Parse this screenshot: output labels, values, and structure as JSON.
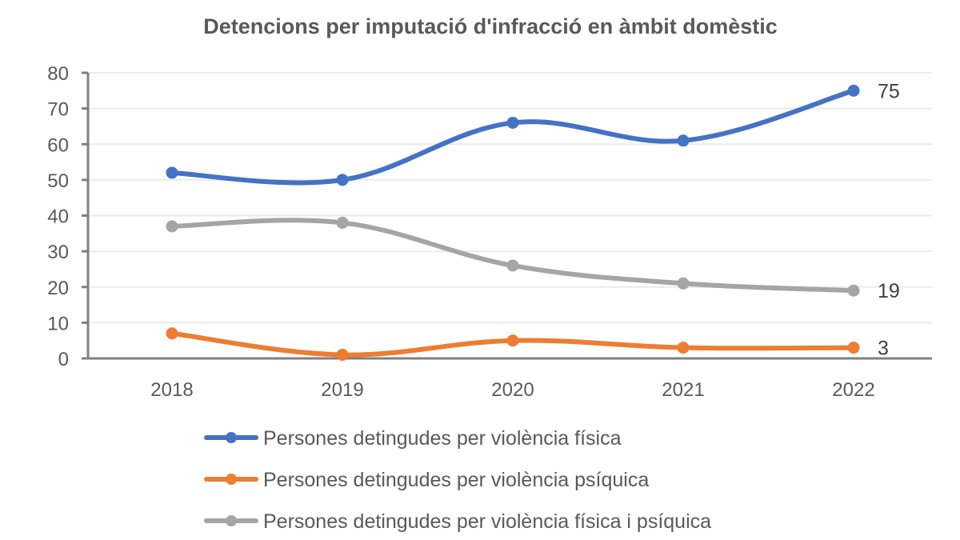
{
  "chart_data": {
    "type": "line",
    "title": "Detencions per imputació d'infracció en àmbit domèstic",
    "xlabel": "",
    "ylabel": "",
    "categories": [
      "2018",
      "2019",
      "2020",
      "2021",
      "2022"
    ],
    "ylim": [
      0,
      80
    ],
    "yticks": [
      0,
      10,
      20,
      30,
      40,
      50,
      60,
      70,
      80
    ],
    "grid": true,
    "smooth": true,
    "legend_position": "bottom",
    "series": [
      {
        "name": "Persones detingudes per violència física",
        "color": "#4472C4",
        "values": [
          52,
          50,
          66,
          61,
          75
        ],
        "end_label": "75"
      },
      {
        "name": "Persones detingudes per violència psíquica",
        "color": "#ED7D31",
        "values": [
          7,
          1,
          5,
          3,
          3
        ],
        "end_label": "3"
      },
      {
        "name": "Persones detingudes per violència física i psíquica",
        "color": "#A5A5A5",
        "values": [
          37,
          38,
          26,
          21,
          19
        ],
        "end_label": "19"
      }
    ]
  }
}
